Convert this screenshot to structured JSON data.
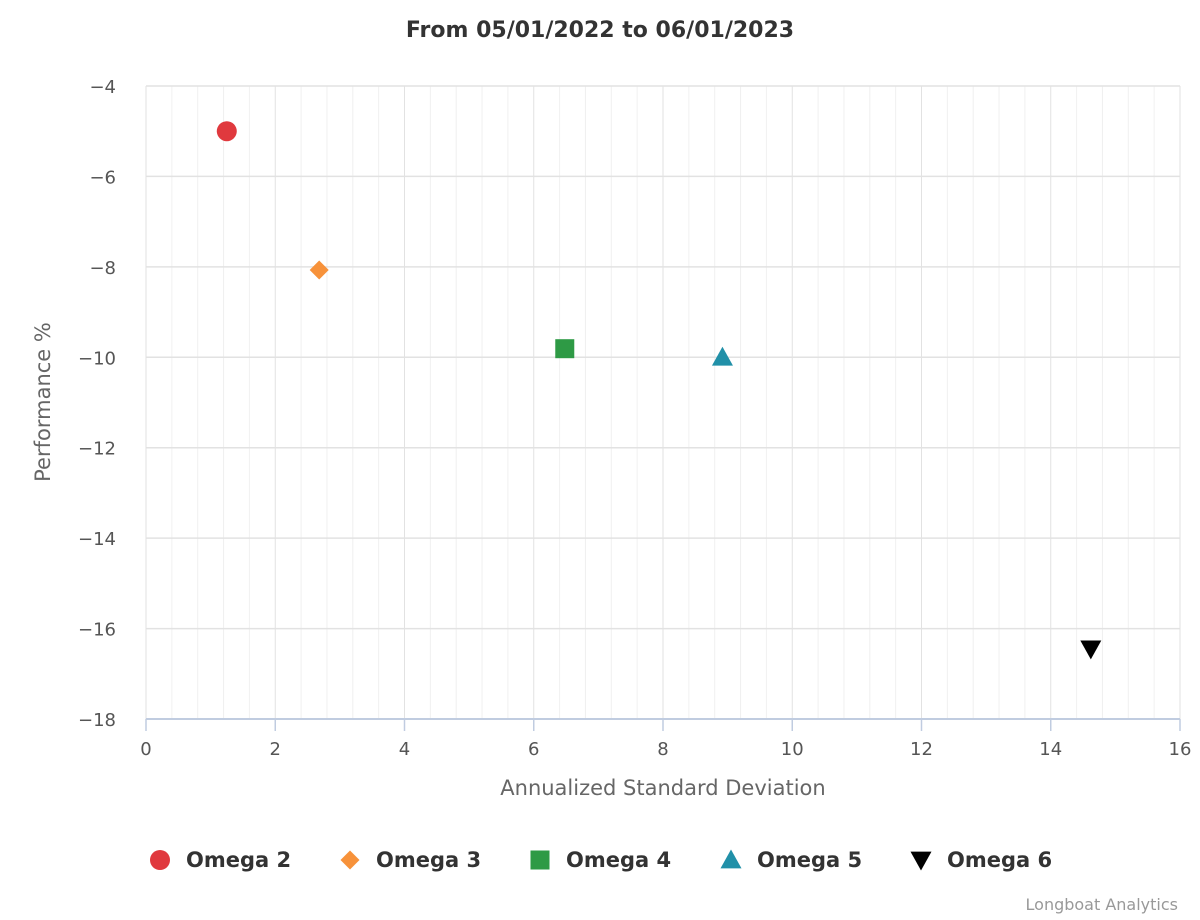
{
  "chart_data": {
    "type": "scatter",
    "title": "From 05/01/2022 to 06/01/2023",
    "xlabel": "Annualized Standard Deviation",
    "ylabel": "Performance %",
    "xlim": [
      0,
      16
    ],
    "ylim": [
      -18,
      -4
    ],
    "x_ticks": [
      0,
      2,
      4,
      6,
      8,
      10,
      12,
      14,
      16
    ],
    "y_ticks": [
      -4,
      -6,
      -8,
      -10,
      -12,
      -14,
      -16,
      -18
    ],
    "grid": true,
    "legend_position": "bottom",
    "series": [
      {
        "name": "Omega 2",
        "marker": "circle",
        "color": "#e0393e",
        "x": 1.25,
        "y": -5.0
      },
      {
        "name": "Omega 3",
        "marker": "diamond",
        "color": "#f7923a",
        "x": 2.68,
        "y": -8.07
      },
      {
        "name": "Omega 4",
        "marker": "square",
        "color": "#2e9a45",
        "x": 6.48,
        "y": -9.81
      },
      {
        "name": "Omega 5",
        "marker": "triangle",
        "color": "#2190a8",
        "x": 8.92,
        "y": -10.0
      },
      {
        "name": "Omega 6",
        "marker": "triangle-down",
        "color": "#000000",
        "x": 14.62,
        "y": -16.45
      }
    ]
  },
  "credit": "Longboat Analytics"
}
